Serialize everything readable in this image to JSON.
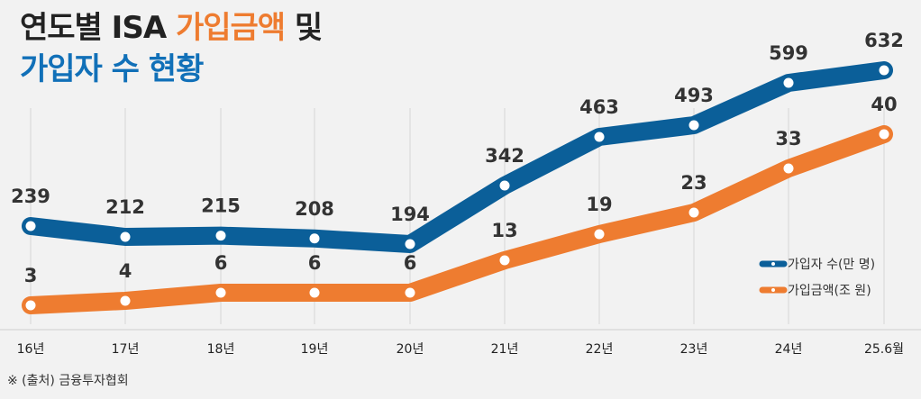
{
  "title": {
    "line1": [
      {
        "text": "연도별 ISA ",
        "color": "#222222"
      },
      {
        "text": "가입금액",
        "color": "#ee7c30"
      },
      {
        "text": " 및",
        "color": "#222222"
      }
    ],
    "line2": [
      {
        "text": "가입자 수 현황",
        "color": "#1170b8"
      }
    ]
  },
  "source": "※ (출처) 금융투자협회",
  "colors": {
    "subscribers": "#0b5f99",
    "amount": "#ee7c30",
    "grid": "#d6d6d6"
  },
  "chart_data": {
    "type": "line",
    "categories": [
      "16년",
      "17년",
      "18년",
      "19년",
      "20년",
      "21년",
      "22년",
      "23년",
      "24년",
      "25.6월"
    ],
    "series": [
      {
        "name": "가입자 수(만 명)",
        "values": [
          239,
          212,
          215,
          208,
          194,
          342,
          463,
          493,
          599,
          632
        ]
      },
      {
        "name": "가입금액(조 원)",
        "values": [
          3,
          4,
          6,
          6,
          6,
          13,
          19,
          23,
          33,
          40
        ]
      }
    ],
    "legend_position": "right"
  }
}
